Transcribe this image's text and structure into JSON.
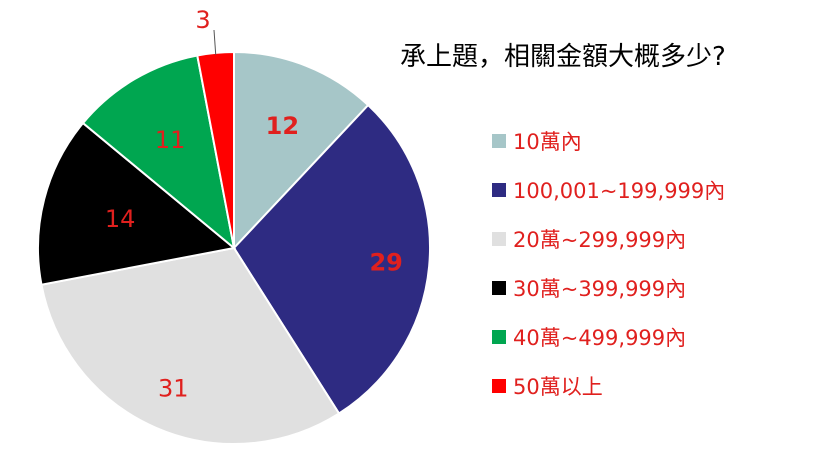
{
  "chart_data": {
    "type": "pie",
    "title": "承上題，相關金額大概多少?",
    "categories": [
      "10萬內",
      "100,001~199,999內",
      "20萬~299,999內",
      "30萬~399,999內",
      "40萬~499,999內",
      "50萬以上"
    ],
    "values": [
      12,
      29,
      31,
      14,
      11,
      3
    ],
    "colors": [
      "#a6c6c8",
      "#2e2b82",
      "#e0e0e0",
      "#000000",
      "#00a650",
      "#ff0000"
    ],
    "data_label_color": "#e0201e",
    "legend_placement": "right"
  }
}
